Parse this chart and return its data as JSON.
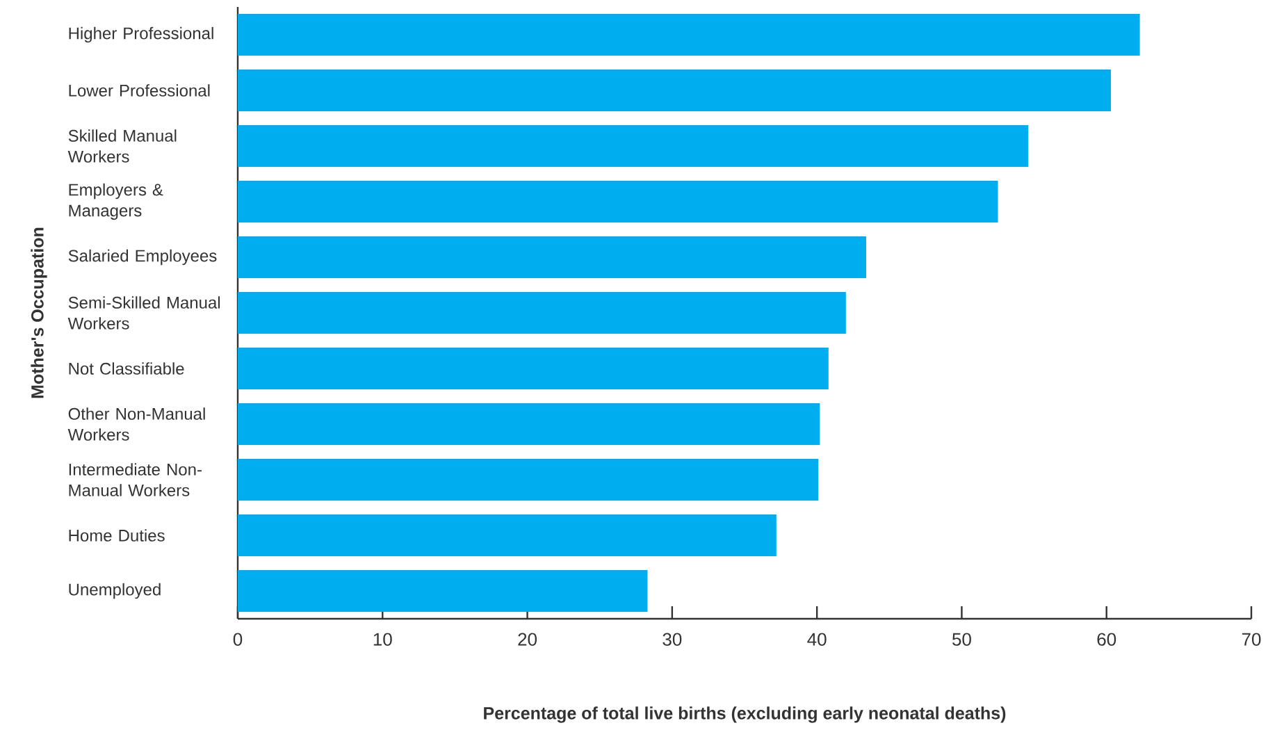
{
  "chart_data": {
    "type": "bar",
    "orientation": "horizontal",
    "ylabel": "Mother's Occupation",
    "xlabel": "Percentage of total live births (excluding early neonatal deaths)",
    "categories": [
      "Higher Professional",
      "Lower Professional",
      "Skilled Manual Workers",
      "Employers & Managers",
      "Salaried Employees",
      "Semi-Skilled Manual Workers",
      "Not Classifiable",
      "Other Non-Manual Workers",
      "Intermediate Non-Manual Workers",
      "Home Duties",
      "Unemployed"
    ],
    "values": [
      62.3,
      60.3,
      54.6,
      52.5,
      43.4,
      42.0,
      40.8,
      40.2,
      40.1,
      37.2,
      28.3
    ],
    "color": "#00aeef",
    "xlim": [
      0,
      70
    ],
    "xticks": [
      0,
      10,
      20,
      30,
      40,
      50,
      60,
      70
    ]
  }
}
